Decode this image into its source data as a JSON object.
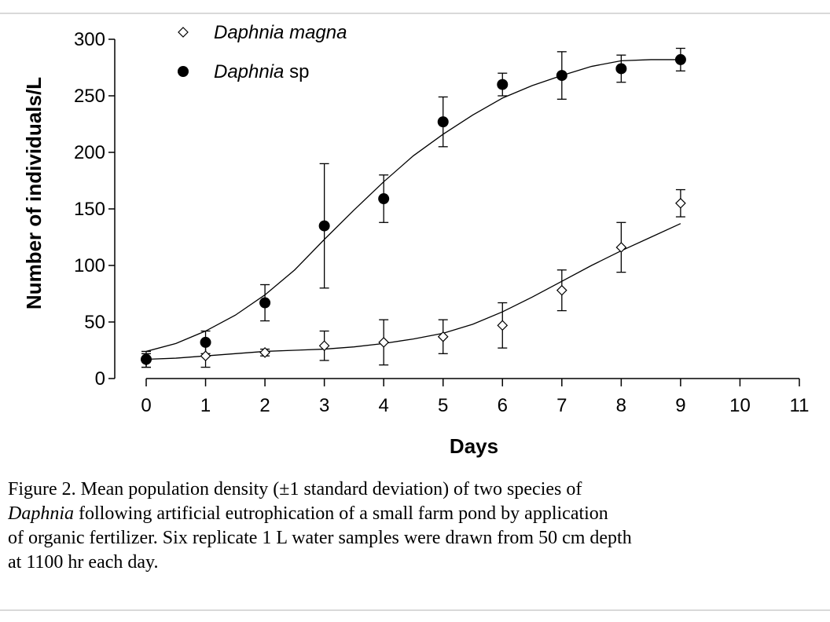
{
  "chart_data": {
    "type": "scatter",
    "xlabel": "Days",
    "ylabel": "Number of individuals/L",
    "xlim": [
      0,
      11
    ],
    "ylim": [
      0,
      300
    ],
    "xticks": [
      0,
      1,
      2,
      3,
      4,
      5,
      6,
      7,
      8,
      9,
      10,
      11
    ],
    "yticks": [
      0,
      50,
      100,
      150,
      200,
      250,
      300
    ],
    "grid": false,
    "legend": "top-left",
    "series": [
      {
        "name_italic": "Daphnia magna",
        "name_suffix": "",
        "marker": "open-diamond",
        "x": [
          0,
          1,
          2,
          3,
          4,
          5,
          6,
          7,
          8,
          9
        ],
        "y": [
          16,
          20,
          23,
          29,
          32,
          37,
          47,
          78,
          116,
          155
        ],
        "error": [
          6,
          10,
          3,
          13,
          20,
          15,
          20,
          18,
          22,
          12
        ],
        "fit_x": [
          0,
          0.5,
          1,
          1.5,
          2,
          2.5,
          3,
          3.5,
          4,
          4.5,
          5,
          5.5,
          6,
          6.5,
          7,
          7.5,
          8,
          8.5,
          9
        ],
        "fit_y": [
          17,
          18,
          20,
          22,
          24,
          25,
          26,
          28,
          31,
          35,
          40,
          48,
          59,
          72,
          86,
          100,
          113,
          125,
          137
        ]
      },
      {
        "name_italic": "Daphnia",
        "name_suffix": " sp",
        "marker": "filled-circle",
        "x": [
          0,
          1,
          2,
          3,
          4,
          5,
          6,
          7,
          8,
          9
        ],
        "y": [
          17,
          32,
          67,
          135,
          159,
          227,
          260,
          268,
          274,
          282
        ],
        "error": [
          7,
          10,
          16,
          55,
          21,
          22,
          10,
          21,
          12,
          10
        ],
        "fit_x": [
          0,
          0.5,
          1,
          1.5,
          2,
          2.5,
          3,
          3.5,
          4,
          4.5,
          5,
          5.5,
          6,
          6.5,
          7,
          7.5,
          8,
          8.5,
          9
        ],
        "fit_y": [
          24,
          31,
          42,
          56,
          74,
          96,
          123,
          149,
          174,
          197,
          216,
          233,
          248,
          259,
          268,
          276,
          281,
          282,
          282
        ]
      }
    ]
  },
  "caption": {
    "line1": "Figure 2. Mean population density (±1 standard deviation) of two species of",
    "line2_italic": "Daphnia",
    "line2_rest": " following artificial eutrophication  of a small farm pond by application",
    "line3": "of organic fertilizer.  Six replicate 1 L water samples were drawn from 50 cm depth",
    "line4": "at 1100 hr each day."
  }
}
